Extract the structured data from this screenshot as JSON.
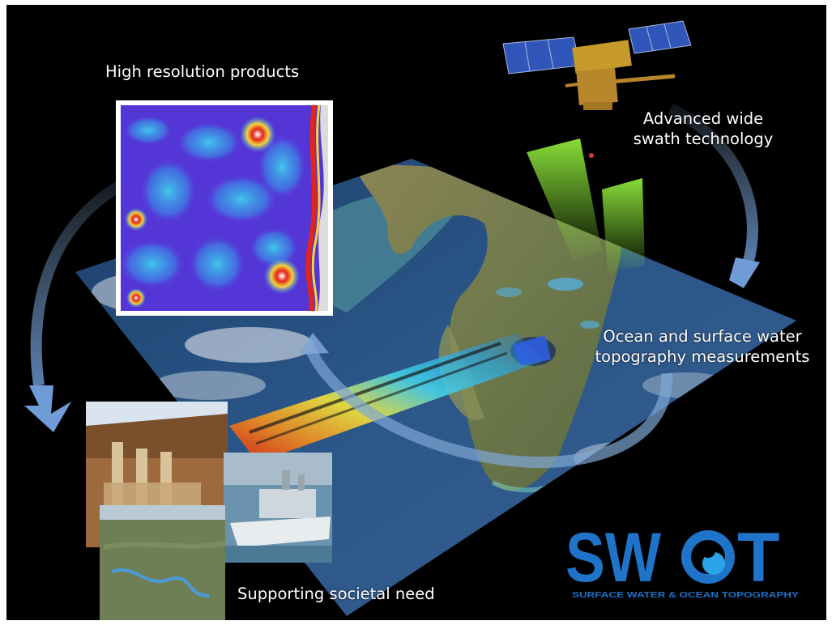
{
  "captions": {
    "high_resolution": "High resolution products",
    "wide_swath_line1": "Advanced wide",
    "wide_swath_line2": "swath technology",
    "ocean_line1": "Ocean and surface water",
    "ocean_line2": "topography measurements",
    "societal_need": "Supporting societal need"
  },
  "logo": {
    "wordmark": "SWOT",
    "tagline": "SURFACE WATER & OCEAN TOPOGRAPHY",
    "color": "#1f73c9"
  },
  "colors": {
    "background": "#000000",
    "swath": "#86e62f",
    "arrow": "#7fa6d4"
  }
}
